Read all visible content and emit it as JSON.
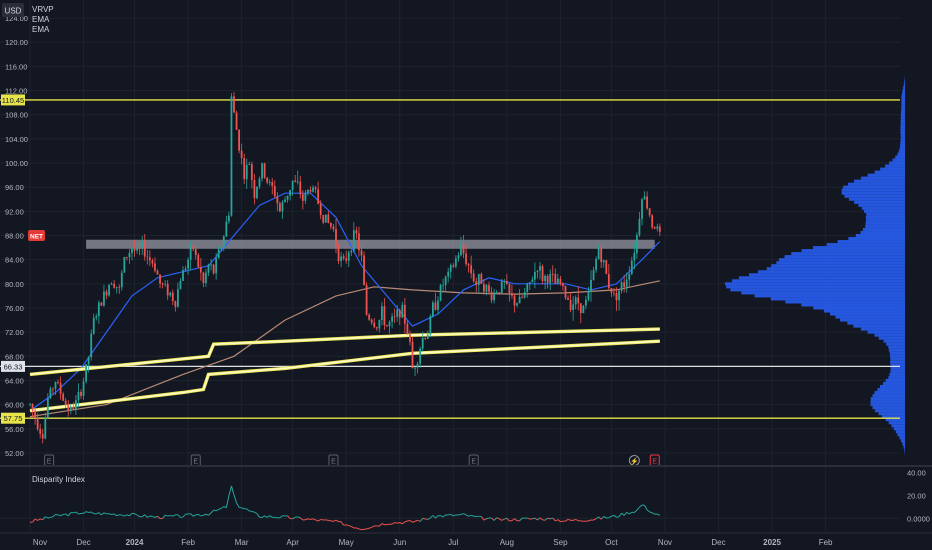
{
  "chart_data": [
    {
      "type": "candlestick",
      "currency_label": "USD",
      "indicators": [
        "VRVP",
        "EMA",
        "EMA"
      ],
      "ticker_badge": "NET",
      "price_ticks": [
        "124.00",
        "120.00",
        "116.00",
        "112.00",
        "108.00",
        "104.00",
        "100.00",
        "96.00",
        "92.00",
        "88.00",
        "84.00",
        "80.00",
        "76.00",
        "72.00",
        "68.00",
        "64.00",
        "60.00",
        "56.00",
        "52.00"
      ],
      "price_tick_values": [
        124,
        120,
        116,
        112,
        108,
        104,
        100,
        96,
        92,
        88,
        84,
        80,
        76,
        72,
        68,
        64,
        60,
        56,
        52
      ],
      "ylim": [
        50.5,
        126
      ],
      "x_ticks": [
        "Nov",
        "Dec",
        "2024",
        "Feb",
        "Mar",
        "Apr",
        "May",
        "Jun",
        "Jul",
        "Aug",
        "Sep",
        "Oct",
        "Nov",
        "Dec",
        "2025",
        "Feb"
      ],
      "x_tick_index": [
        0,
        21,
        41,
        62,
        83,
        103,
        124,
        145,
        166,
        187,
        208,
        228,
        249,
        270,
        291,
        312
      ],
      "horizontal_levels": [
        {
          "label": "110.45",
          "value": 110.45,
          "color": "#e7e34a"
        },
        {
          "label": "66.33",
          "value": 66.33,
          "color": "#e0e0e0"
        },
        {
          "label": "57.75",
          "value": 57.75,
          "color": "#e7e34a"
        }
      ],
      "resistance_zone": {
        "from": 85.8,
        "to": 87.3,
        "start_index": 22,
        "end_index": 245
      },
      "ohlc_path": [
        [
          0,
          60
        ],
        [
          3,
          57
        ],
        [
          5,
          55
        ],
        [
          7,
          61
        ],
        [
          10,
          64
        ],
        [
          12,
          62
        ],
        [
          14,
          60
        ],
        [
          16,
          59
        ],
        [
          19,
          61
        ],
        [
          21,
          64
        ],
        [
          23,
          68
        ],
        [
          25,
          74
        ],
        [
          27,
          76
        ],
        [
          30,
          79
        ],
        [
          32,
          81
        ],
        [
          35,
          79
        ],
        [
          37,
          84
        ],
        [
          40,
          86
        ],
        [
          42,
          85
        ],
        [
          44,
          86
        ],
        [
          47,
          84
        ],
        [
          49,
          83
        ],
        [
          51,
          80
        ],
        [
          54,
          79
        ],
        [
          57,
          77
        ],
        [
          59,
          81
        ],
        [
          62,
          84
        ],
        [
          64,
          86
        ],
        [
          66,
          83
        ],
        [
          68,
          80
        ],
        [
          70,
          83
        ],
        [
          72,
          82
        ],
        [
          74,
          85
        ],
        [
          76,
          88
        ],
        [
          78,
          92
        ],
        [
          79,
          111
        ],
        [
          80,
          108
        ],
        [
          82,
          103
        ],
        [
          84,
          98
        ],
        [
          86,
          100
        ],
        [
          88,
          95
        ],
        [
          91,
          99
        ],
        [
          93,
          97
        ],
        [
          96,
          95
        ],
        [
          98,
          92
        ],
        [
          100,
          94
        ],
        [
          103,
          97
        ],
        [
          105,
          96
        ],
        [
          107,
          94
        ],
        [
          110,
          96
        ],
        [
          112,
          95
        ],
        [
          114,
          92
        ],
        [
          117,
          90
        ],
        [
          119,
          89
        ],
        [
          121,
          85
        ],
        [
          123,
          83
        ],
        [
          126,
          87
        ],
        [
          128,
          88
        ],
        [
          130,
          84
        ],
        [
          132,
          75
        ],
        [
          134,
          74
        ],
        [
          136,
          73
        ],
        [
          138,
          75
        ],
        [
          140,
          73
        ],
        [
          143,
          74
        ],
        [
          145,
          76
        ],
        [
          147,
          74
        ],
        [
          149,
          70
        ],
        [
          150,
          66
        ],
        [
          152,
          68
        ],
        [
          154,
          71
        ],
        [
          156,
          72
        ],
        [
          158,
          76
        ],
        [
          160,
          78
        ],
        [
          162,
          80
        ],
        [
          165,
          82
        ],
        [
          167,
          84
        ],
        [
          169,
          86
        ],
        [
          171,
          84
        ],
        [
          173,
          82
        ],
        [
          175,
          80
        ],
        [
          177,
          81
        ],
        [
          179,
          79
        ],
        [
          181,
          78
        ],
        [
          183,
          79
        ],
        [
          186,
          80
        ],
        [
          188,
          78
        ],
        [
          190,
          77
        ],
        [
          192,
          77
        ],
        [
          195,
          79
        ],
        [
          197,
          81
        ],
        [
          199,
          83
        ],
        [
          201,
          81
        ],
        [
          204,
          81
        ],
        [
          206,
          80
        ],
        [
          208,
          80
        ],
        [
          210,
          78
        ],
        [
          212,
          77
        ],
        [
          215,
          77
        ],
        [
          217,
          76
        ],
        [
          219,
          78
        ],
        [
          221,
          82
        ],
        [
          223,
          86
        ],
        [
          225,
          83
        ],
        [
          227,
          80
        ],
        [
          229,
          78
        ],
        [
          231,
          79
        ],
        [
          233,
          80
        ],
        [
          236,
          84
        ],
        [
          238,
          88
        ],
        [
          240,
          95
        ],
        [
          242,
          93
        ],
        [
          244,
          90
        ],
        [
          246,
          89
        ],
        [
          247,
          88
        ]
      ],
      "ema_fast": [
        [
          0,
          59
        ],
        [
          10,
          62
        ],
        [
          20,
          66
        ],
        [
          30,
          72
        ],
        [
          40,
          78
        ],
        [
          50,
          81
        ],
        [
          60,
          82
        ],
        [
          70,
          83
        ],
        [
          80,
          88
        ],
        [
          90,
          93
        ],
        [
          100,
          95
        ],
        [
          110,
          95
        ],
        [
          120,
          91
        ],
        [
          130,
          83
        ],
        [
          140,
          78
        ],
        [
          150,
          73
        ],
        [
          160,
          75
        ],
        [
          170,
          79
        ],
        [
          180,
          81
        ],
        [
          190,
          80
        ],
        [
          200,
          80
        ],
        [
          210,
          80
        ],
        [
          220,
          79
        ],
        [
          230,
          80
        ],
        [
          240,
          84
        ],
        [
          247,
          87
        ]
      ],
      "ema_slow": [
        [
          0,
          58
        ],
        [
          30,
          60
        ],
        [
          60,
          65
        ],
        [
          80,
          68
        ],
        [
          100,
          74
        ],
        [
          120,
          78
        ],
        [
          135,
          79.5
        ],
        [
          150,
          79
        ],
        [
          170,
          78.5
        ],
        [
          190,
          78.3
        ],
        [
          210,
          78.5
        ],
        [
          230,
          79
        ],
        [
          247,
          80.5
        ]
      ],
      "trendlines": [
        {
          "points": [
            [
              0,
              65
            ],
            [
              70,
              68
            ],
            [
              72,
              70
            ],
            [
              100,
              70.5
            ],
            [
              150,
              71.5
            ],
            [
              200,
              72
            ],
            [
              247,
              72.5
            ]
          ]
        },
        {
          "points": [
            [
              0,
              59
            ],
            [
              60,
              62
            ],
            [
              68,
              62.5
            ],
            [
              70,
              65
            ],
            [
              100,
              66
            ],
            [
              150,
              68.5
            ],
            [
              200,
              69.5
            ],
            [
              247,
              70.5
            ]
          ]
        }
      ],
      "earnings_markers": [
        {
          "index": 2,
          "label": "E"
        },
        {
          "index": 65,
          "label": "E"
        },
        {
          "index": 119,
          "label": "E"
        },
        {
          "index": 174,
          "label": "E"
        },
        {
          "index": 245,
          "label": "E"
        }
      ],
      "dividend_marker": {
        "index": 237,
        "symbol": "⚡"
      },
      "volume_profile_note": "volume by price histogram, blue, right side"
    },
    {
      "type": "line",
      "title": "Disparity Index",
      "ticks": [
        "40.00",
        "20.00",
        "0.0000"
      ],
      "tick_values": [
        40,
        20,
        0
      ],
      "ylim": [
        -12,
        44
      ],
      "series_sample": [
        [
          0,
          -3
        ],
        [
          10,
          2
        ],
        [
          20,
          5
        ],
        [
          30,
          4
        ],
        [
          40,
          3
        ],
        [
          50,
          1
        ],
        [
          60,
          2
        ],
        [
          70,
          4
        ],
        [
          77,
          10
        ],
        [
          79,
          28
        ],
        [
          81,
          12
        ],
        [
          90,
          2
        ],
        [
          100,
          1
        ],
        [
          110,
          -1
        ],
        [
          120,
          -3
        ],
        [
          125,
          -6
        ],
        [
          130,
          -9
        ],
        [
          140,
          -4
        ],
        [
          150,
          -3
        ],
        [
          160,
          2
        ],
        [
          170,
          3
        ],
        [
          180,
          -1
        ],
        [
          190,
          -1
        ],
        [
          200,
          0
        ],
        [
          210,
          -2
        ],
        [
          220,
          -1
        ],
        [
          230,
          2
        ],
        [
          238,
          7
        ],
        [
          240,
          12
        ],
        [
          244,
          5
        ],
        [
          247,
          2
        ]
      ]
    }
  ],
  "colors": {
    "background": "#131722",
    "grid": "#1e222d",
    "up": "#26a69a",
    "down": "#ef5350",
    "ema_fast": "#2962ff",
    "ema_slow": "#b88a75",
    "trendline": "#fff9c4",
    "level_yellow": "#e7e34a",
    "volume_profile": "#2962ff",
    "zone": "#9598a1"
  }
}
